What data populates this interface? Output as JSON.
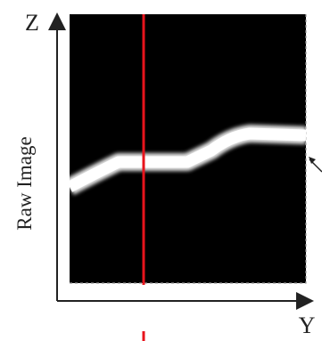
{
  "figure": {
    "axes": {
      "vertical_label": "Z",
      "horizontal_label": "Y"
    },
    "side_label": "Raw Image",
    "image": {
      "background_color": "#000000",
      "curve_color": "#ffffff",
      "marker_line_color": "#e8141c",
      "axis_color": "#222222"
    }
  }
}
